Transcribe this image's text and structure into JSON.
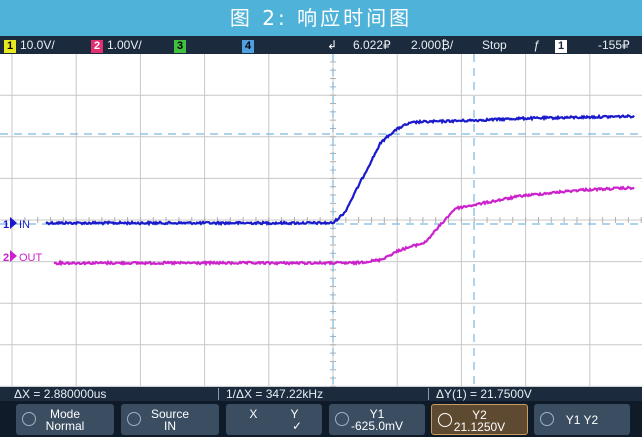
{
  "title": "图 2: 响应时间图",
  "status": {
    "ch1_num": "1",
    "ch1_scale": "10.0V/",
    "ch2_num": "2",
    "ch2_scale": "1.00V/",
    "ch3_num": "3",
    "ch4_num": "4",
    "trigger_symbol": "↲",
    "time_pos": "6.022",
    "time_pos_unit": "₽",
    "time_div": "2.000",
    "time_div_unit": "₿/",
    "run_state": "Stop",
    "trig_slope": "ƒ",
    "trig_src": "1",
    "trig_level": "-155",
    "trig_level_unit": "₽"
  },
  "traces": [
    {
      "marker_num": "1",
      "label": "IN",
      "color": "#1a1acc"
    },
    {
      "marker_num": "2",
      "label": "OUT",
      "color": "#cc22cc"
    }
  ],
  "measurements": {
    "dx": "ΔX = 2.880000us",
    "inv_dx": "1/ΔX = 347.22kHz",
    "dy": "ΔY(1) = 21.7500V"
  },
  "softkeys": [
    {
      "l1": "Mode",
      "l2": "Normal",
      "active": false
    },
    {
      "l1": "Source",
      "l2": "IN",
      "active": false
    },
    {
      "l1": "X          Y",
      "l2": "✓",
      "active": false
    },
    {
      "l1": "Y1",
      "l2": "-625.0mV",
      "active": false
    },
    {
      "l1": "Y2",
      "l2": "21.1250V",
      "active": true
    },
    {
      "l1": "Y1 Y2",
      "l2": "",
      "active": false
    }
  ],
  "colors": {
    "title_bg": "#4fb3d9",
    "status_bg": "#1b2b3d",
    "ch1": "#e8e820",
    "ch2": "#e03070",
    "ch3": "#40c040",
    "ch4": "#50a0e0",
    "in_trace": "#1a1acc",
    "out_trace": "#cc22cc",
    "cursor": "#7ab8e0"
  }
}
